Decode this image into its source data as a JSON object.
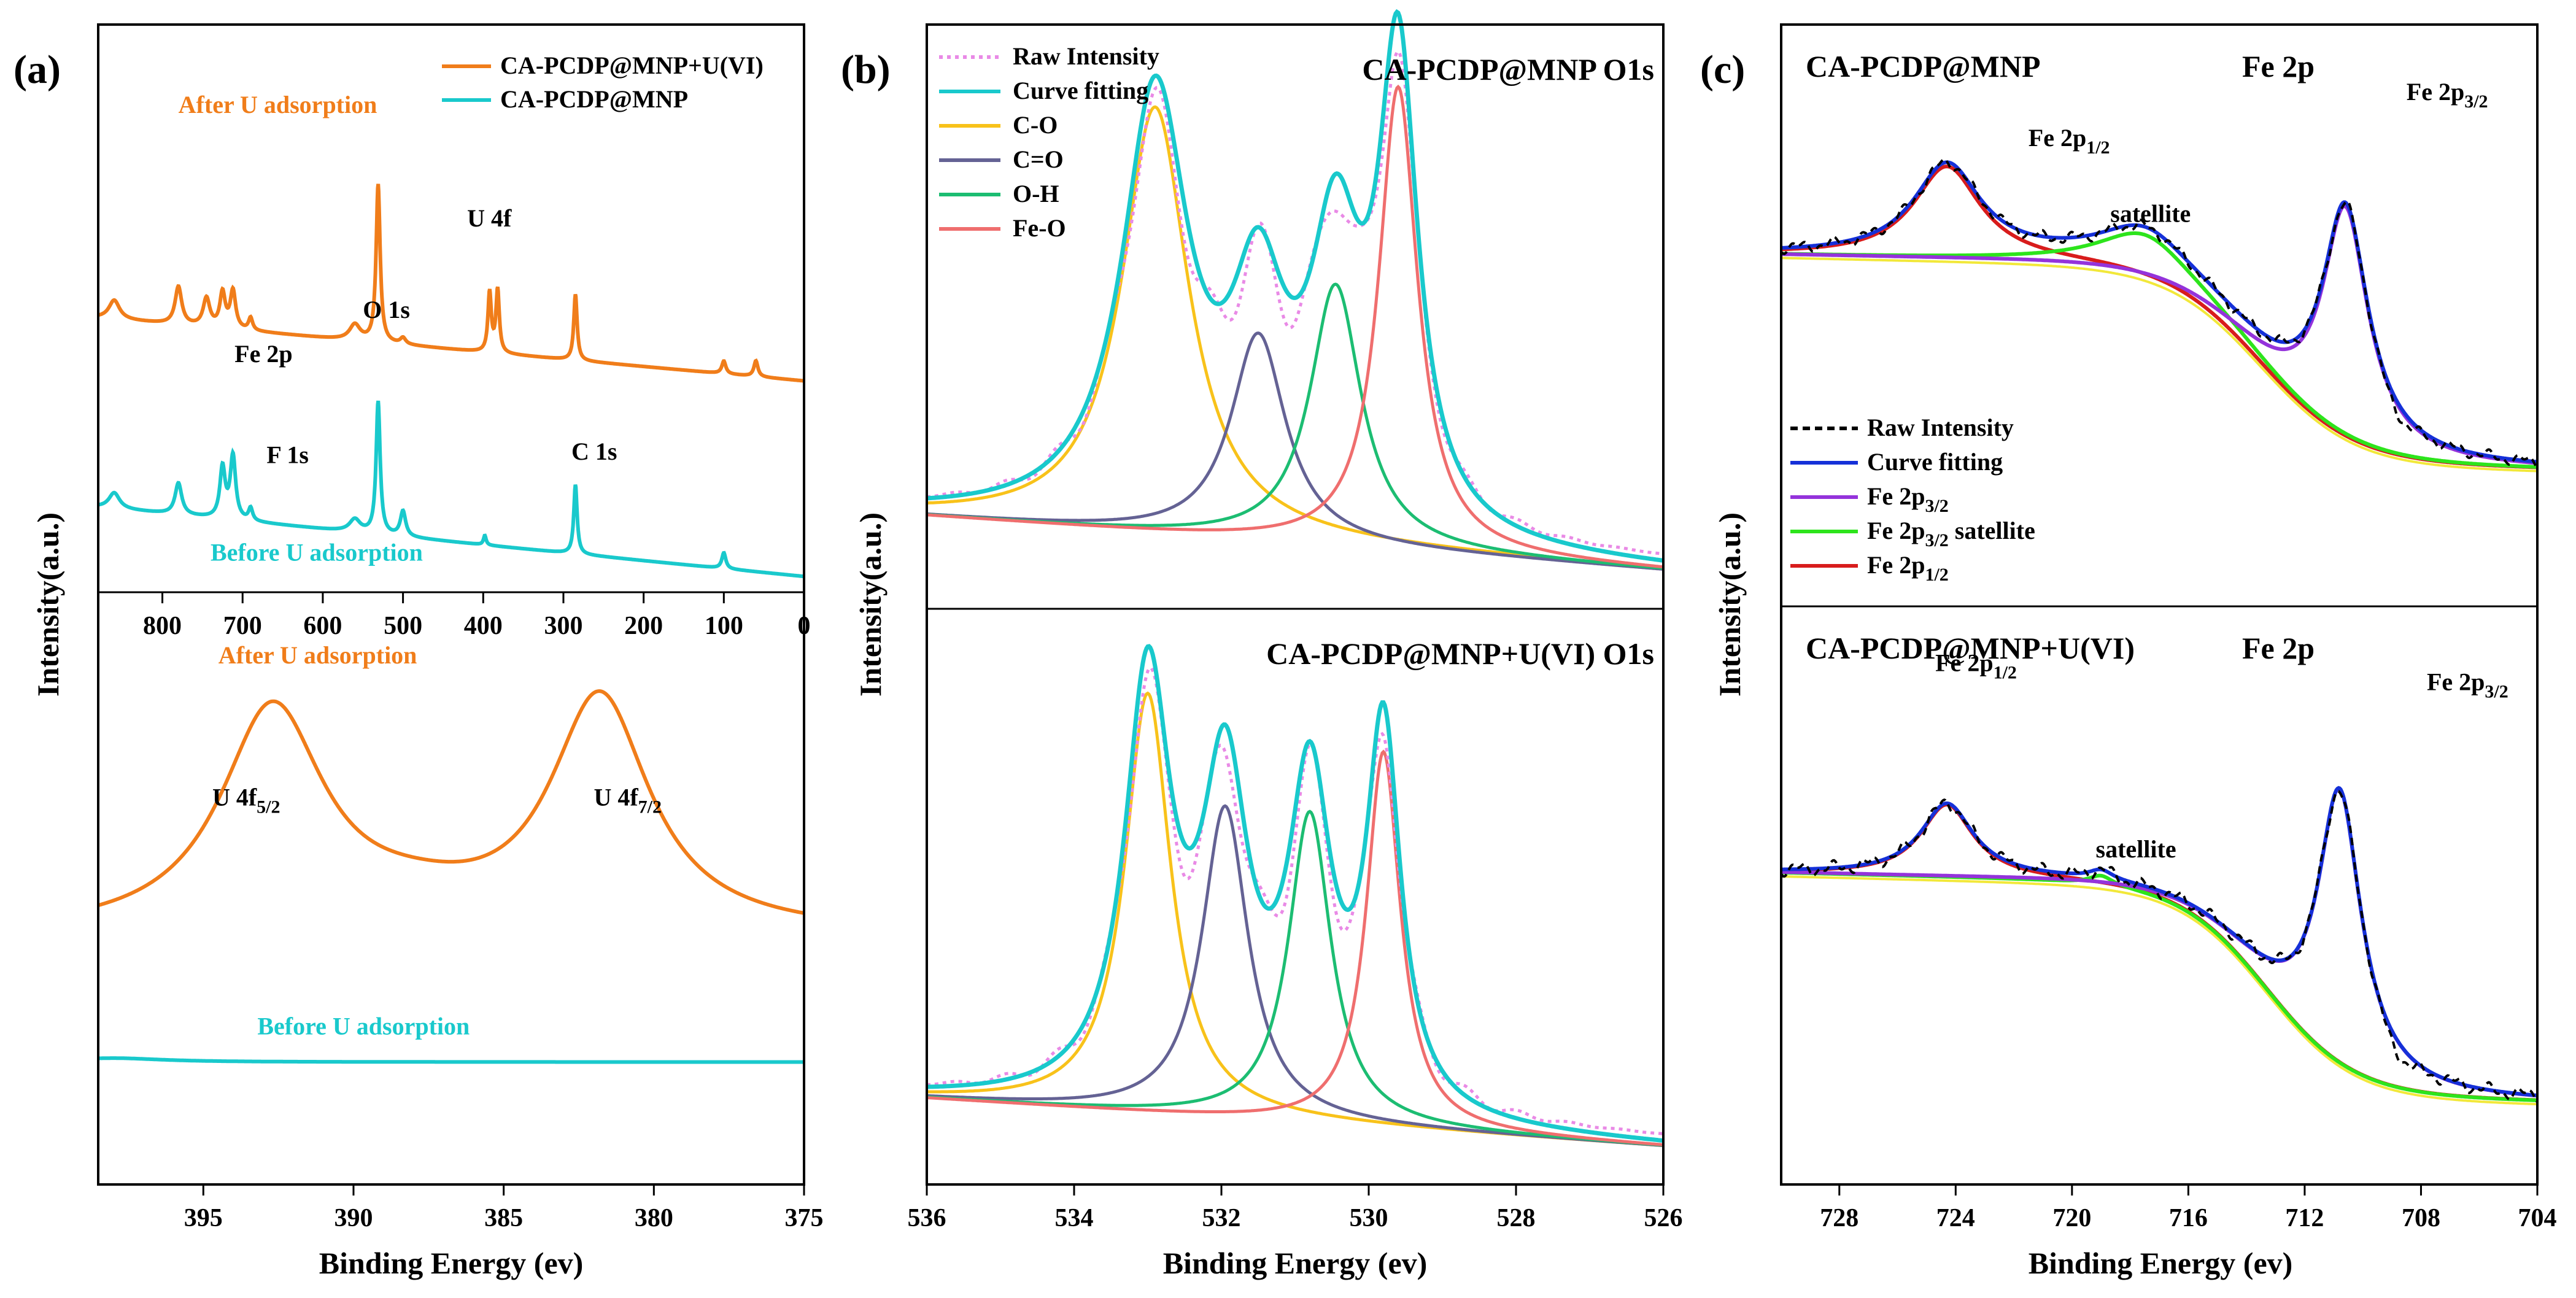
{
  "panel_labels": [
    "(a)",
    "(b)",
    "(c)"
  ],
  "colors": {
    "orange": "#f07d1a",
    "cyan": "#19c9cc",
    "raw_pink": "#e98ae6",
    "gold": "#f8c21a",
    "slate": "#646294",
    "green": "#1cbd72",
    "salmon": "#ef6e6e",
    "blue": "#1530d8",
    "purple": "#9433db",
    "lime": "#2de41c",
    "red": "#d81c1c",
    "yellow": "#f2e83a",
    "black": "#000000"
  },
  "chart_data": [
    {
      "panel": "(a)",
      "id": "a-top",
      "type": "line",
      "ylabel": "Intensity(a.u.)",
      "xlim": [
        880,
        0
      ],
      "xticks": [
        800,
        700,
        600,
        500,
        400,
        300,
        200,
        100,
        0
      ],
      "legend": {
        "position": "top-right",
        "entries": [
          {
            "label": "CA-PCDP@MNP+U(VI)",
            "color": "#f07d1a"
          },
          {
            "label": "CA-PCDP@MNP",
            "color": "#19c9cc"
          }
        ]
      },
      "series": [
        {
          "name": "CA-PCDP@MNP+U(VI)",
          "color": "#f07d1a",
          "baseline": 0.62,
          "slope": 0.2,
          "peaks": [
            [
              860,
              0.06,
              8
            ],
            [
              780,
              0.12,
              5
            ],
            [
              745,
              0.09,
              5
            ],
            [
              725,
              0.11,
              4
            ],
            [
              712,
              0.12,
              4
            ],
            [
              690,
              0.04,
              3
            ],
            [
              560,
              0.05,
              8
            ],
            [
              531,
              0.5,
              3
            ],
            [
              500,
              0.02,
              4
            ],
            [
              392,
              0.19,
              2.5
            ],
            [
              382,
              0.2,
              2.5
            ],
            [
              285,
              0.21,
              2.5
            ],
            [
              100,
              0.04,
              3
            ],
            [
              60,
              0.05,
              3
            ]
          ]
        },
        {
          "name": "CA-PCDP@MNP",
          "color": "#19c9cc",
          "baseline": 0.0,
          "slope": 0.22,
          "peaks": [
            [
              860,
              0.05,
              8
            ],
            [
              780,
              0.1,
              5
            ],
            [
              725,
              0.16,
              4
            ],
            [
              712,
              0.2,
              4
            ],
            [
              690,
              0.04,
              3
            ],
            [
              560,
              0.04,
              8
            ],
            [
              531,
              0.42,
              3
            ],
            [
              500,
              0.08,
              4
            ],
            [
              398,
              0.03,
              2
            ],
            [
              285,
              0.22,
              2.5
            ],
            [
              100,
              0.05,
              3
            ]
          ]
        }
      ],
      "annotations": [
        {
          "text": "After U adsorption",
          "x": 780,
          "y": 1.47,
          "color": "#f07d1a"
        },
        {
          "text": "U 4f",
          "x": 420,
          "y": 1.11
        },
        {
          "text": "Fe 2p",
          "x": 710,
          "y": 0.68
        },
        {
          "text": "O 1s",
          "x": 550,
          "y": 0.82
        },
        {
          "text": "F 1s",
          "x": 670,
          "y": 0.36
        },
        {
          "text": "C 1s",
          "x": 290,
          "y": 0.37
        },
        {
          "text": "Before U adsorption",
          "x": 740,
          "y": 0.05,
          "color": "#19c9cc"
        }
      ]
    },
    {
      "panel": "(a)",
      "id": "a-bottom",
      "type": "line",
      "xlabel": "Binding Energy (ev)",
      "xlim": [
        398.5,
        375
      ],
      "xticks": [
        395,
        390,
        385,
        380,
        375
      ],
      "series": [
        {
          "name": "After U adsorption",
          "color": "#f07d1a",
          "baseline": 0.33,
          "peaks": [
            [
              392.7,
              0.56,
              2.1
            ],
            [
              381.8,
              0.59,
              2.0
            ],
            [
              388,
              0.05,
              3
            ]
          ]
        },
        {
          "name": "Before U adsorption",
          "color": "#19c9cc",
          "baseline": 0.01,
          "peaks": [
            [
              398,
              0.01,
              2
            ]
          ]
        }
      ],
      "annotations": [
        {
          "text": "After U adsorption",
          "x": 394.5,
          "y": 1.02,
          "color": "#f07d1a"
        },
        {
          "text": "U 4f5/2",
          "x": 394.7,
          "y": 0.66
        },
        {
          "text": "U 4f7/2",
          "x": 382,
          "y": 0.66
        },
        {
          "text": "Before U adsorption",
          "x": 393.2,
          "y": 0.08,
          "color": "#19c9cc"
        }
      ]
    },
    {
      "panel": "(b)",
      "id": "b-top",
      "type": "line",
      "ylabel": "Intensity(a.u.)",
      "xlim": [
        536,
        526
      ],
      "title": "CA-PCDP@MNP   O1s",
      "legend": {
        "position": "top-left",
        "entries": [
          {
            "label": "Raw Intensity",
            "color": "#e98ae6",
            "dashed": true
          },
          {
            "label": "Curve fitting",
            "color": "#19c9cc"
          },
          {
            "label": "C-O",
            "color": "#f8c21a"
          },
          {
            "label": "C=O",
            "color": "#646294"
          },
          {
            "label": "O-H",
            "color": "#1cbd72"
          },
          {
            "label": "Fe-O",
            "color": "#ef6e6e"
          }
        ]
      },
      "background": {
        "left": 0.05,
        "right": -0.05
      },
      "components": [
        {
          "name": "C-O",
          "color": "#f8c21a",
          "center": 532.9,
          "amp": 0.78,
          "width": 0.55
        },
        {
          "name": "C=O",
          "color": "#646294",
          "center": 531.5,
          "amp": 0.38,
          "width": 0.45
        },
        {
          "name": "O-H",
          "color": "#1cbd72",
          "center": 530.45,
          "amp": 0.48,
          "width": 0.42
        },
        {
          "name": "Fe-O",
          "color": "#ef6e6e",
          "center": 529.6,
          "amp": 0.85,
          "width": 0.32
        }
      ]
    },
    {
      "panel": "(b)",
      "id": "b-bottom",
      "type": "line",
      "xlabel": "Binding Energy (ev)",
      "xlim": [
        536,
        526
      ],
      "xticks": [
        536,
        534,
        532,
        530,
        528,
        526
      ],
      "title": "CA-PCDP@MNP+U(VI)   O1s",
      "background": {
        "left": 0.04,
        "right": -0.05
      },
      "components": [
        {
          "name": "C-O",
          "color": "#f8c21a",
          "center": 533.0,
          "amp": 0.78,
          "width": 0.38
        },
        {
          "name": "C=O",
          "color": "#646294",
          "center": 531.95,
          "amp": 0.58,
          "width": 0.38
        },
        {
          "name": "O-H",
          "color": "#1cbd72",
          "center": 530.8,
          "amp": 0.58,
          "width": 0.35
        },
        {
          "name": "Fe-O",
          "color": "#ef6e6e",
          "center": 529.8,
          "amp": 0.7,
          "width": 0.28
        }
      ]
    },
    {
      "panel": "(c)",
      "id": "c-top",
      "type": "line",
      "xlim": [
        730,
        704
      ],
      "title_left": "CA-PCDP@MNP",
      "title_right": "Fe 2p",
      "legend": {
        "position": "bottom-left",
        "entries": [
          {
            "label": "Raw Intensity",
            "color": "#000000",
            "dashed": true
          },
          {
            "label": "Curve fitting",
            "color": "#1530d8"
          },
          {
            "label": "Fe 2p3/2",
            "color": "#9433db"
          },
          {
            "label": "Fe 2p3/2 satellite",
            "color": "#2de41c"
          },
          {
            "label": "Fe 2p1/2",
            "color": "#d81c1c"
          }
        ]
      },
      "background": {
        "high": 0.6,
        "low": 0.0,
        "step_center": 713.5,
        "step_width": 1.6
      },
      "components": [
        {
          "name": "Fe 2p1/2",
          "color": "#d81c1c",
          "center": 724.3,
          "amp": 0.28,
          "width": 1.4
        },
        {
          "name": "Fe 2p3/2 satellite",
          "color": "#2de41c",
          "center": 717.5,
          "amp": 0.13,
          "width": 1.9
        },
        {
          "name": "Fe 2p3/2",
          "color": "#9433db",
          "center": 710.6,
          "amp": 0.7,
          "width": 0.95
        }
      ],
      "annotations": [
        {
          "text": "Fe 2p1/2",
          "x": 721.5,
          "y": 0.98
        },
        {
          "text": "satellite",
          "x": 717.3,
          "y": 0.75
        },
        {
          "text": "Fe 2p3/2",
          "x": 708.5,
          "y": 1.12
        }
      ]
    },
    {
      "panel": "(c)",
      "id": "c-bottom",
      "type": "line",
      "xlabel": "Binding Energy (ev)",
      "xlim": [
        730,
        704
      ],
      "xticks": [
        728,
        724,
        720,
        716,
        712,
        708,
        704
      ],
      "title_left": "CA-PCDP@MNP+U(VI)",
      "title_right": "Fe 2p",
      "background": {
        "high": 0.55,
        "low": 0.0,
        "step_center": 713.3,
        "step_width": 1.5
      },
      "components": [
        {
          "name": "Fe 2p1/2",
          "color": "#d81c1c",
          "center": 724.3,
          "amp": 0.19,
          "width": 1.1
        },
        {
          "name": "Fe 2p3/2 satellite",
          "color": "#2de41c",
          "center": 719.0,
          "amp": 0.025,
          "width": 0.5
        },
        {
          "name": "Fe 2p3/2",
          "color": "#9433db",
          "center": 710.8,
          "amp": 0.72,
          "width": 0.9
        }
      ],
      "annotations": [
        {
          "text": "Fe 2p1/2",
          "x": 724.7,
          "y": 1.13
        },
        {
          "text": "satellite",
          "x": 717.8,
          "y": 0.64
        },
        {
          "text": "Fe 2p3/2",
          "x": 707.8,
          "y": 1.08
        }
      ]
    }
  ],
  "ylabel_c": "Intensity(a.u.)"
}
